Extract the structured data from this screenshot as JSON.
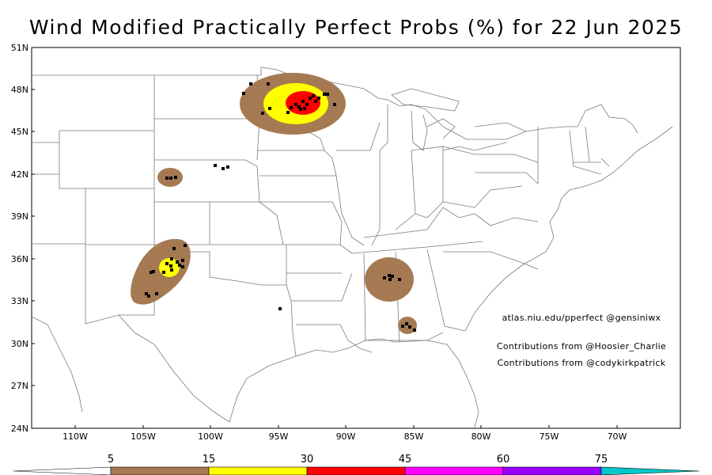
{
  "title": "Wind Modified Practically Perfect Probs (%) for 22 Jun 2025",
  "map": {
    "lat_labels": [
      "51N",
      "48N",
      "45N",
      "42N",
      "39N",
      "36N",
      "33N",
      "30N",
      "27N",
      "24N"
    ],
    "lon_labels": [
      "110W",
      "105W",
      "100W",
      "95W",
      "90W",
      "85W",
      "80W",
      "75W",
      "70W"
    ],
    "lat_range": [
      24,
      51
    ],
    "lon_range": [
      -113.5,
      -70.5
    ]
  },
  "annotations": {
    "url": "atlas.niu.edu/pperfect @gensiniwx",
    "contrib1": "Contributions from @Hoosier_Charlie",
    "contrib2": "Contributions from @codykirkpatrick"
  },
  "colorbar": {
    "labels": [
      "5",
      "15",
      "30",
      "45",
      "60",
      "75"
    ],
    "colors": [
      "#ffffff",
      "#a57a52",
      "#ffff00",
      "#ff0000",
      "#ff00ff",
      "#9900ff",
      "#00c8c8"
    ]
  },
  "probability_colors": {
    "5": "#a57a52",
    "15": "#ffff00",
    "30": "#ff0000"
  }
}
